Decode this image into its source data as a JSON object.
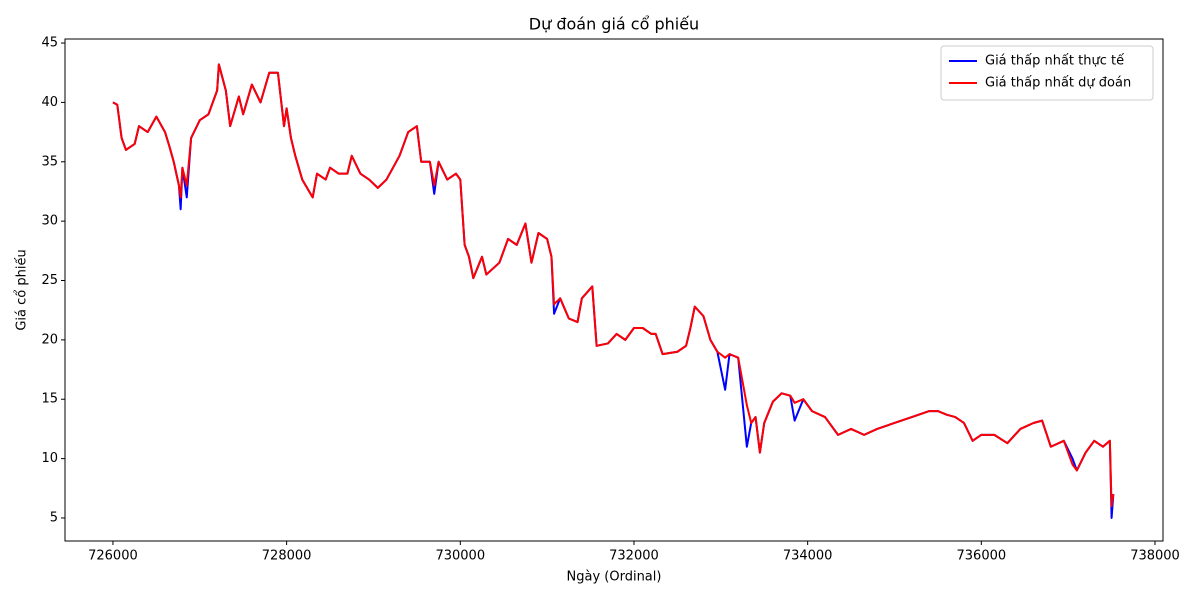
{
  "chart_data": {
    "type": "line",
    "title": "Dự đoán giá cổ phiếu",
    "x_label": "Ngày (Ordinal)",
    "y_label": "Giá cổ phiếu",
    "x": [
      726000,
      726050,
      726100,
      726150,
      726250,
      726300,
      726400,
      726500,
      726600,
      726650,
      726700,
      726760,
      726780,
      726800,
      726850,
      726900,
      727000,
      727100,
      727200,
      727220,
      727300,
      727350,
      727450,
      727500,
      727600,
      727700,
      727800,
      727900,
      727970,
      728000,
      728050,
      728100,
      728180,
      728300,
      728350,
      728450,
      728500,
      728600,
      728700,
      728750,
      728850,
      728950,
      729050,
      729150,
      729300,
      729400,
      729500,
      729550,
      729650,
      729700,
      729750,
      729850,
      729950,
      730000,
      730050,
      730100,
      730150,
      730250,
      730300,
      730450,
      730550,
      730650,
      730750,
      730820,
      730900,
      731000,
      731050,
      731080,
      731150,
      731250,
      731350,
      731400,
      731520,
      731570,
      731700,
      731800,
      731900,
      732000,
      732100,
      732200,
      732250,
      732330,
      732500,
      732600,
      732650,
      732700,
      732800,
      732880,
      732960,
      733050,
      733100,
      733200,
      733300,
      733350,
      733400,
      733450,
      733500,
      733600,
      733700,
      733800,
      733850,
      733950,
      734050,
      734200,
      734350,
      734500,
      734650,
      734800,
      735000,
      735200,
      735400,
      735500,
      735600,
      735700,
      735800,
      735900,
      736000,
      736150,
      736300,
      736450,
      736600,
      736700,
      736800,
      736950,
      737050,
      737100,
      737200,
      737300,
      737400,
      737480,
      737500,
      737520
    ],
    "series": [
      {
        "name": "Giá thấp nhất thực tế",
        "color": "#0000ff",
        "values": [
          40,
          39.8,
          37,
          36,
          36.5,
          38,
          37.5,
          38.8,
          37.5,
          36.3,
          35,
          33,
          31,
          34.5,
          32,
          37,
          38.5,
          39,
          41,
          43.2,
          41,
          38,
          40.5,
          39,
          41.5,
          40,
          42.5,
          42.5,
          38,
          39.5,
          37,
          35.5,
          33.5,
          32,
          34,
          33.5,
          34.5,
          34,
          34,
          35.5,
          34,
          33.5,
          32.8,
          33.5,
          35.5,
          37.5,
          38,
          35,
          35,
          32.3,
          35,
          33.5,
          34,
          33.5,
          28,
          27,
          25.2,
          27,
          25.5,
          26.5,
          28.5,
          28,
          29.8,
          26.5,
          29,
          28.5,
          27,
          22.2,
          23.5,
          21.8,
          21.5,
          23.5,
          24.5,
          19.5,
          19.7,
          20.5,
          20,
          21,
          21,
          20.5,
          20.5,
          18.8,
          19,
          19.5,
          21,
          22.8,
          22,
          20,
          19,
          15.8,
          18.8,
          18.5,
          11,
          13,
          13.5,
          10.5,
          13,
          14.8,
          15.5,
          15.3,
          13.2,
          15,
          14,
          13.5,
          12,
          12.5,
          12,
          12.5,
          13,
          13.5,
          14,
          14,
          13.7,
          13.5,
          13,
          11.5,
          12,
          12,
          11.3,
          12.5,
          13,
          13.2,
          11,
          11.5,
          10,
          9,
          10.5,
          11.5,
          11,
          11.5,
          5,
          7
        ]
      },
      {
        "name": "Giá thấp nhất dự đoán",
        "color": "#ff0000",
        "values": [
          40,
          39.8,
          37,
          36,
          36.5,
          38,
          37.5,
          38.8,
          37.5,
          36.3,
          35,
          33,
          32,
          34.5,
          33,
          37,
          38.5,
          39,
          41,
          43.2,
          41,
          38,
          40.5,
          39,
          41.5,
          40,
          42.5,
          42.5,
          38,
          39.5,
          37,
          35.5,
          33.5,
          32,
          34,
          33.5,
          34.5,
          34,
          34,
          35.5,
          34,
          33.5,
          32.8,
          33.5,
          35.5,
          37.5,
          38,
          35,
          35,
          33,
          35,
          33.5,
          34,
          33.5,
          28,
          27,
          25.2,
          27,
          25.5,
          26.5,
          28.5,
          28,
          29.8,
          26.5,
          29,
          28.5,
          27,
          23,
          23.5,
          21.8,
          21.5,
          23.5,
          24.5,
          19.5,
          19.7,
          20.5,
          20,
          21,
          21,
          20.5,
          20.5,
          18.8,
          19,
          19.5,
          21,
          22.8,
          22,
          20,
          19,
          18.5,
          18.8,
          18.5,
          14.5,
          13,
          13.5,
          10.5,
          13,
          14.8,
          15.5,
          15.3,
          14.7,
          15,
          14,
          13.5,
          12,
          12.5,
          12,
          12.5,
          13,
          13.5,
          14,
          14,
          13.7,
          13.5,
          13,
          11.5,
          12,
          12,
          11.3,
          12.5,
          13,
          13.2,
          11,
          11.5,
          9.5,
          9,
          10.5,
          11.5,
          11,
          11.5,
          6,
          7
        ]
      }
    ],
    "xlim": [
      725448,
      738092
    ],
    "ylim": [
      3.06,
      45.34
    ],
    "xticks": [
      726000,
      728000,
      730000,
      732000,
      734000,
      736000,
      738000
    ],
    "yticks": [
      5,
      10,
      15,
      20,
      25,
      30,
      35,
      40,
      45
    ],
    "legend": "upper right"
  }
}
